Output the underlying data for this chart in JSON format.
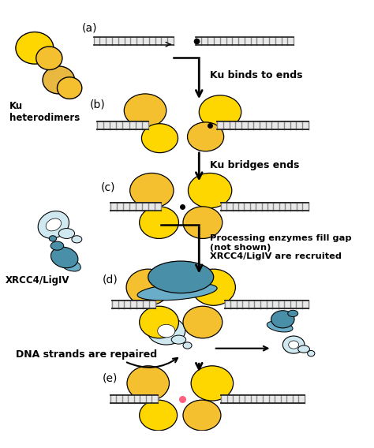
{
  "background_color": "#ffffff",
  "yellow_bright": "#FFD700",
  "yellow_mid": "#F5C030",
  "yellow_pale": "#E8B840",
  "yellow_dark": "#D4A020",
  "blue_dark": "#4A8FA8",
  "blue_mid": "#6AADC8",
  "blue_pale": "#B8D8E8",
  "blue_very_pale": "#D0E8F0",
  "black": "#000000",
  "dna_light": "#E8E8E8",
  "dna_dark": "#888888",
  "dna_border": "#222222",
  "labels": [
    "(a)",
    "(b)",
    "(c)",
    "(d)",
    "(e)"
  ],
  "annotations": {
    "ku_heterodimers": "Ku\nheterodimers",
    "ku_binds": "Ku binds to ends",
    "ku_bridges": "Ku bridges ends",
    "processing": "Processing enzymes fill gap\n(not shown)\nXRCC4/LigIV are recruited",
    "xrcc4": "XRCC4/LigIV",
    "dna_repaired": "DNA strands are repaired"
  },
  "figsize": [
    4.74,
    5.68
  ],
  "dpi": 100
}
